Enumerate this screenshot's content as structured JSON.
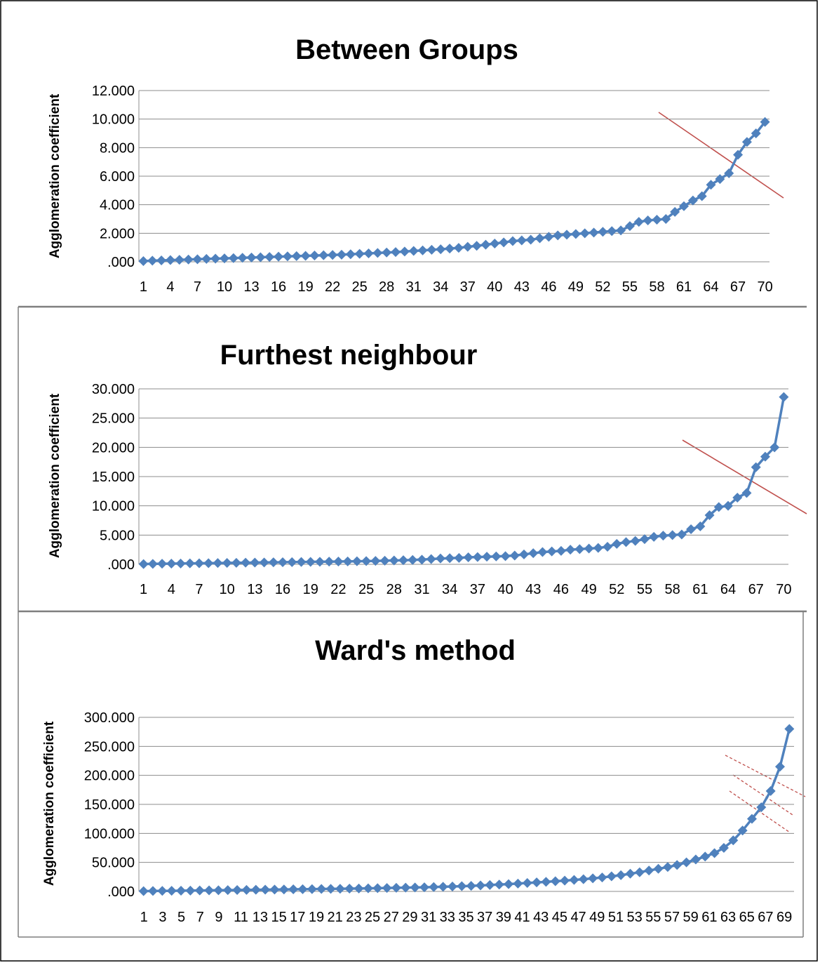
{
  "chart_data": [
    {
      "type": "line",
      "title": "Between Groups",
      "ylabel": "Agglomeration coefficient",
      "xlabel": "",
      "ylim": [
        0,
        12
      ],
      "ytick_labels": [
        ".000",
        "2.000",
        "4.000",
        "6.000",
        "8.000",
        "10.000",
        "12.000"
      ],
      "xtick_labels": [
        "1",
        "4",
        "7",
        "10",
        "13",
        "16",
        "19",
        "22",
        "25",
        "28",
        "31",
        "34",
        "37",
        "40",
        "43",
        "46",
        "49",
        "52",
        "55",
        "58",
        "61",
        "64",
        "67",
        "70"
      ],
      "grid": "horizontal",
      "series": [
        {
          "x": [
            1,
            2,
            3,
            4,
            5,
            6,
            7,
            8,
            9,
            10,
            11,
            12,
            13,
            14,
            15,
            16,
            17,
            18,
            19,
            20,
            21,
            22,
            23,
            24,
            25,
            26,
            27,
            28,
            29,
            30,
            31,
            32,
            33,
            34,
            35,
            36,
            37,
            38,
            39,
            40,
            41,
            42,
            43,
            44,
            45,
            46,
            47,
            48,
            49,
            50,
            51,
            52,
            53,
            54,
            55,
            56,
            57,
            58,
            59,
            60,
            61,
            62,
            63,
            64,
            65,
            66,
            67,
            68,
            69,
            70
          ],
          "values": [
            0.05,
            0.08,
            0.1,
            0.12,
            0.14,
            0.16,
            0.18,
            0.2,
            0.22,
            0.24,
            0.26,
            0.28,
            0.3,
            0.32,
            0.34,
            0.36,
            0.38,
            0.4,
            0.42,
            0.44,
            0.46,
            0.48,
            0.5,
            0.53,
            0.56,
            0.59,
            0.62,
            0.65,
            0.68,
            0.72,
            0.76,
            0.8,
            0.84,
            0.88,
            0.93,
            0.98,
            1.05,
            1.12,
            1.2,
            1.28,
            1.36,
            1.45,
            1.5,
            1.55,
            1.65,
            1.75,
            1.85,
            1.9,
            1.95,
            2.0,
            2.05,
            2.1,
            2.15,
            2.2,
            2.5,
            2.8,
            2.9,
            2.95,
            3.0,
            3.5,
            3.9,
            4.3,
            4.6,
            5.4,
            5.8,
            6.2,
            7.5,
            8.4,
            9.0,
            9.8
          ]
        }
      ]
    },
    {
      "type": "line",
      "title": "Furthest neighbour",
      "ylabel": "Agglomeration coefficient",
      "xlabel": "",
      "ylim": [
        0,
        30
      ],
      "ytick_labels": [
        ".000",
        "5.000",
        "10.000",
        "15.000",
        "20.000",
        "25.000",
        "30.000"
      ],
      "xtick_labels": [
        "1",
        "4",
        "7",
        "10",
        "13",
        "16",
        "19",
        "22",
        "25",
        "28",
        "31",
        "34",
        "37",
        "40",
        "43",
        "46",
        "49",
        "52",
        "55",
        "58",
        "61",
        "64",
        "67",
        "70"
      ],
      "grid": "horizontal",
      "series": [
        {
          "x": [
            1,
            2,
            3,
            4,
            5,
            6,
            7,
            8,
            9,
            10,
            11,
            12,
            13,
            14,
            15,
            16,
            17,
            18,
            19,
            20,
            21,
            22,
            23,
            24,
            25,
            26,
            27,
            28,
            29,
            30,
            31,
            32,
            33,
            34,
            35,
            36,
            37,
            38,
            39,
            40,
            41,
            42,
            43,
            44,
            45,
            46,
            47,
            48,
            49,
            50,
            51,
            52,
            53,
            54,
            55,
            56,
            57,
            58,
            59,
            60,
            61,
            62,
            63,
            64,
            65,
            66,
            67,
            68,
            69,
            70
          ],
          "values": [
            0.05,
            0.08,
            0.1,
            0.12,
            0.14,
            0.16,
            0.18,
            0.2,
            0.22,
            0.24,
            0.26,
            0.28,
            0.3,
            0.32,
            0.34,
            0.36,
            0.38,
            0.4,
            0.42,
            0.44,
            0.46,
            0.48,
            0.5,
            0.52,
            0.55,
            0.58,
            0.62,
            0.66,
            0.7,
            0.75,
            0.8,
            0.9,
            1.0,
            1.05,
            1.1,
            1.2,
            1.25,
            1.3,
            1.35,
            1.4,
            1.5,
            1.7,
            1.9,
            2.1,
            2.2,
            2.3,
            2.5,
            2.6,
            2.7,
            2.8,
            3.0,
            3.5,
            3.8,
            4.0,
            4.3,
            4.7,
            4.9,
            5.0,
            5.1,
            6.0,
            6.5,
            8.4,
            9.8,
            10.0,
            11.4,
            12.2,
            16.6,
            18.4,
            20.0,
            28.6
          ]
        }
      ]
    },
    {
      "type": "line",
      "title": "Ward's method",
      "ylabel": "Agglomeration coefficient",
      "xlabel": "",
      "ylim": [
        0,
        300
      ],
      "ytick_labels": [
        ".000",
        "50.000",
        "100.000",
        "150.000",
        "200.000",
        "250.000",
        "300.000"
      ],
      "xtick_labels": [
        "1",
        "3",
        "5",
        "7",
        "9",
        "11",
        "13",
        "15",
        "17",
        "19",
        "21",
        "23",
        "25",
        "27",
        "29",
        "31",
        "33",
        "35",
        "37",
        "39",
        "41",
        "43",
        "45",
        "47",
        "49",
        "51",
        "53",
        "55",
        "57",
        "59",
        "61",
        "63",
        "65",
        "67",
        "69"
      ],
      "grid": "horizontal",
      "series": [
        {
          "x": [
            1,
            2,
            3,
            4,
            5,
            6,
            7,
            8,
            9,
            10,
            11,
            12,
            13,
            14,
            15,
            16,
            17,
            18,
            19,
            20,
            21,
            22,
            23,
            24,
            25,
            26,
            27,
            28,
            29,
            30,
            31,
            32,
            33,
            34,
            35,
            36,
            37,
            38,
            39,
            40,
            41,
            42,
            43,
            44,
            45,
            46,
            47,
            48,
            49,
            50,
            51,
            52,
            53,
            54,
            55,
            56,
            57,
            58,
            59,
            60,
            61,
            62,
            63,
            64,
            65,
            66,
            67,
            68,
            69,
            70
          ],
          "values": [
            0.5,
            0.7,
            0.9,
            1.0,
            1.2,
            1.4,
            1.6,
            1.8,
            2.0,
            2.2,
            2.4,
            2.6,
            2.8,
            3.0,
            3.2,
            3.4,
            3.6,
            3.8,
            4.0,
            4.2,
            4.4,
            4.6,
            4.8,
            5.0,
            5.3,
            5.6,
            5.9,
            6.2,
            6.5,
            6.8,
            7.1,
            7.5,
            8.0,
            8.5,
            9.0,
            9.6,
            10.3,
            11.0,
            11.8,
            12.6,
            13.5,
            14.5,
            15.5,
            16.5,
            17.5,
            18.6,
            19.8,
            21.0,
            22.5,
            24.0,
            26.0,
            28.0,
            30.5,
            33.0,
            36.0,
            39.0,
            42.0,
            45.5,
            50.0,
            55.0,
            60.0,
            66.0,
            75.0,
            88.0,
            105.0,
            125.0,
            145.0,
            173.0,
            215.0,
            280.0
          ]
        }
      ]
    }
  ]
}
